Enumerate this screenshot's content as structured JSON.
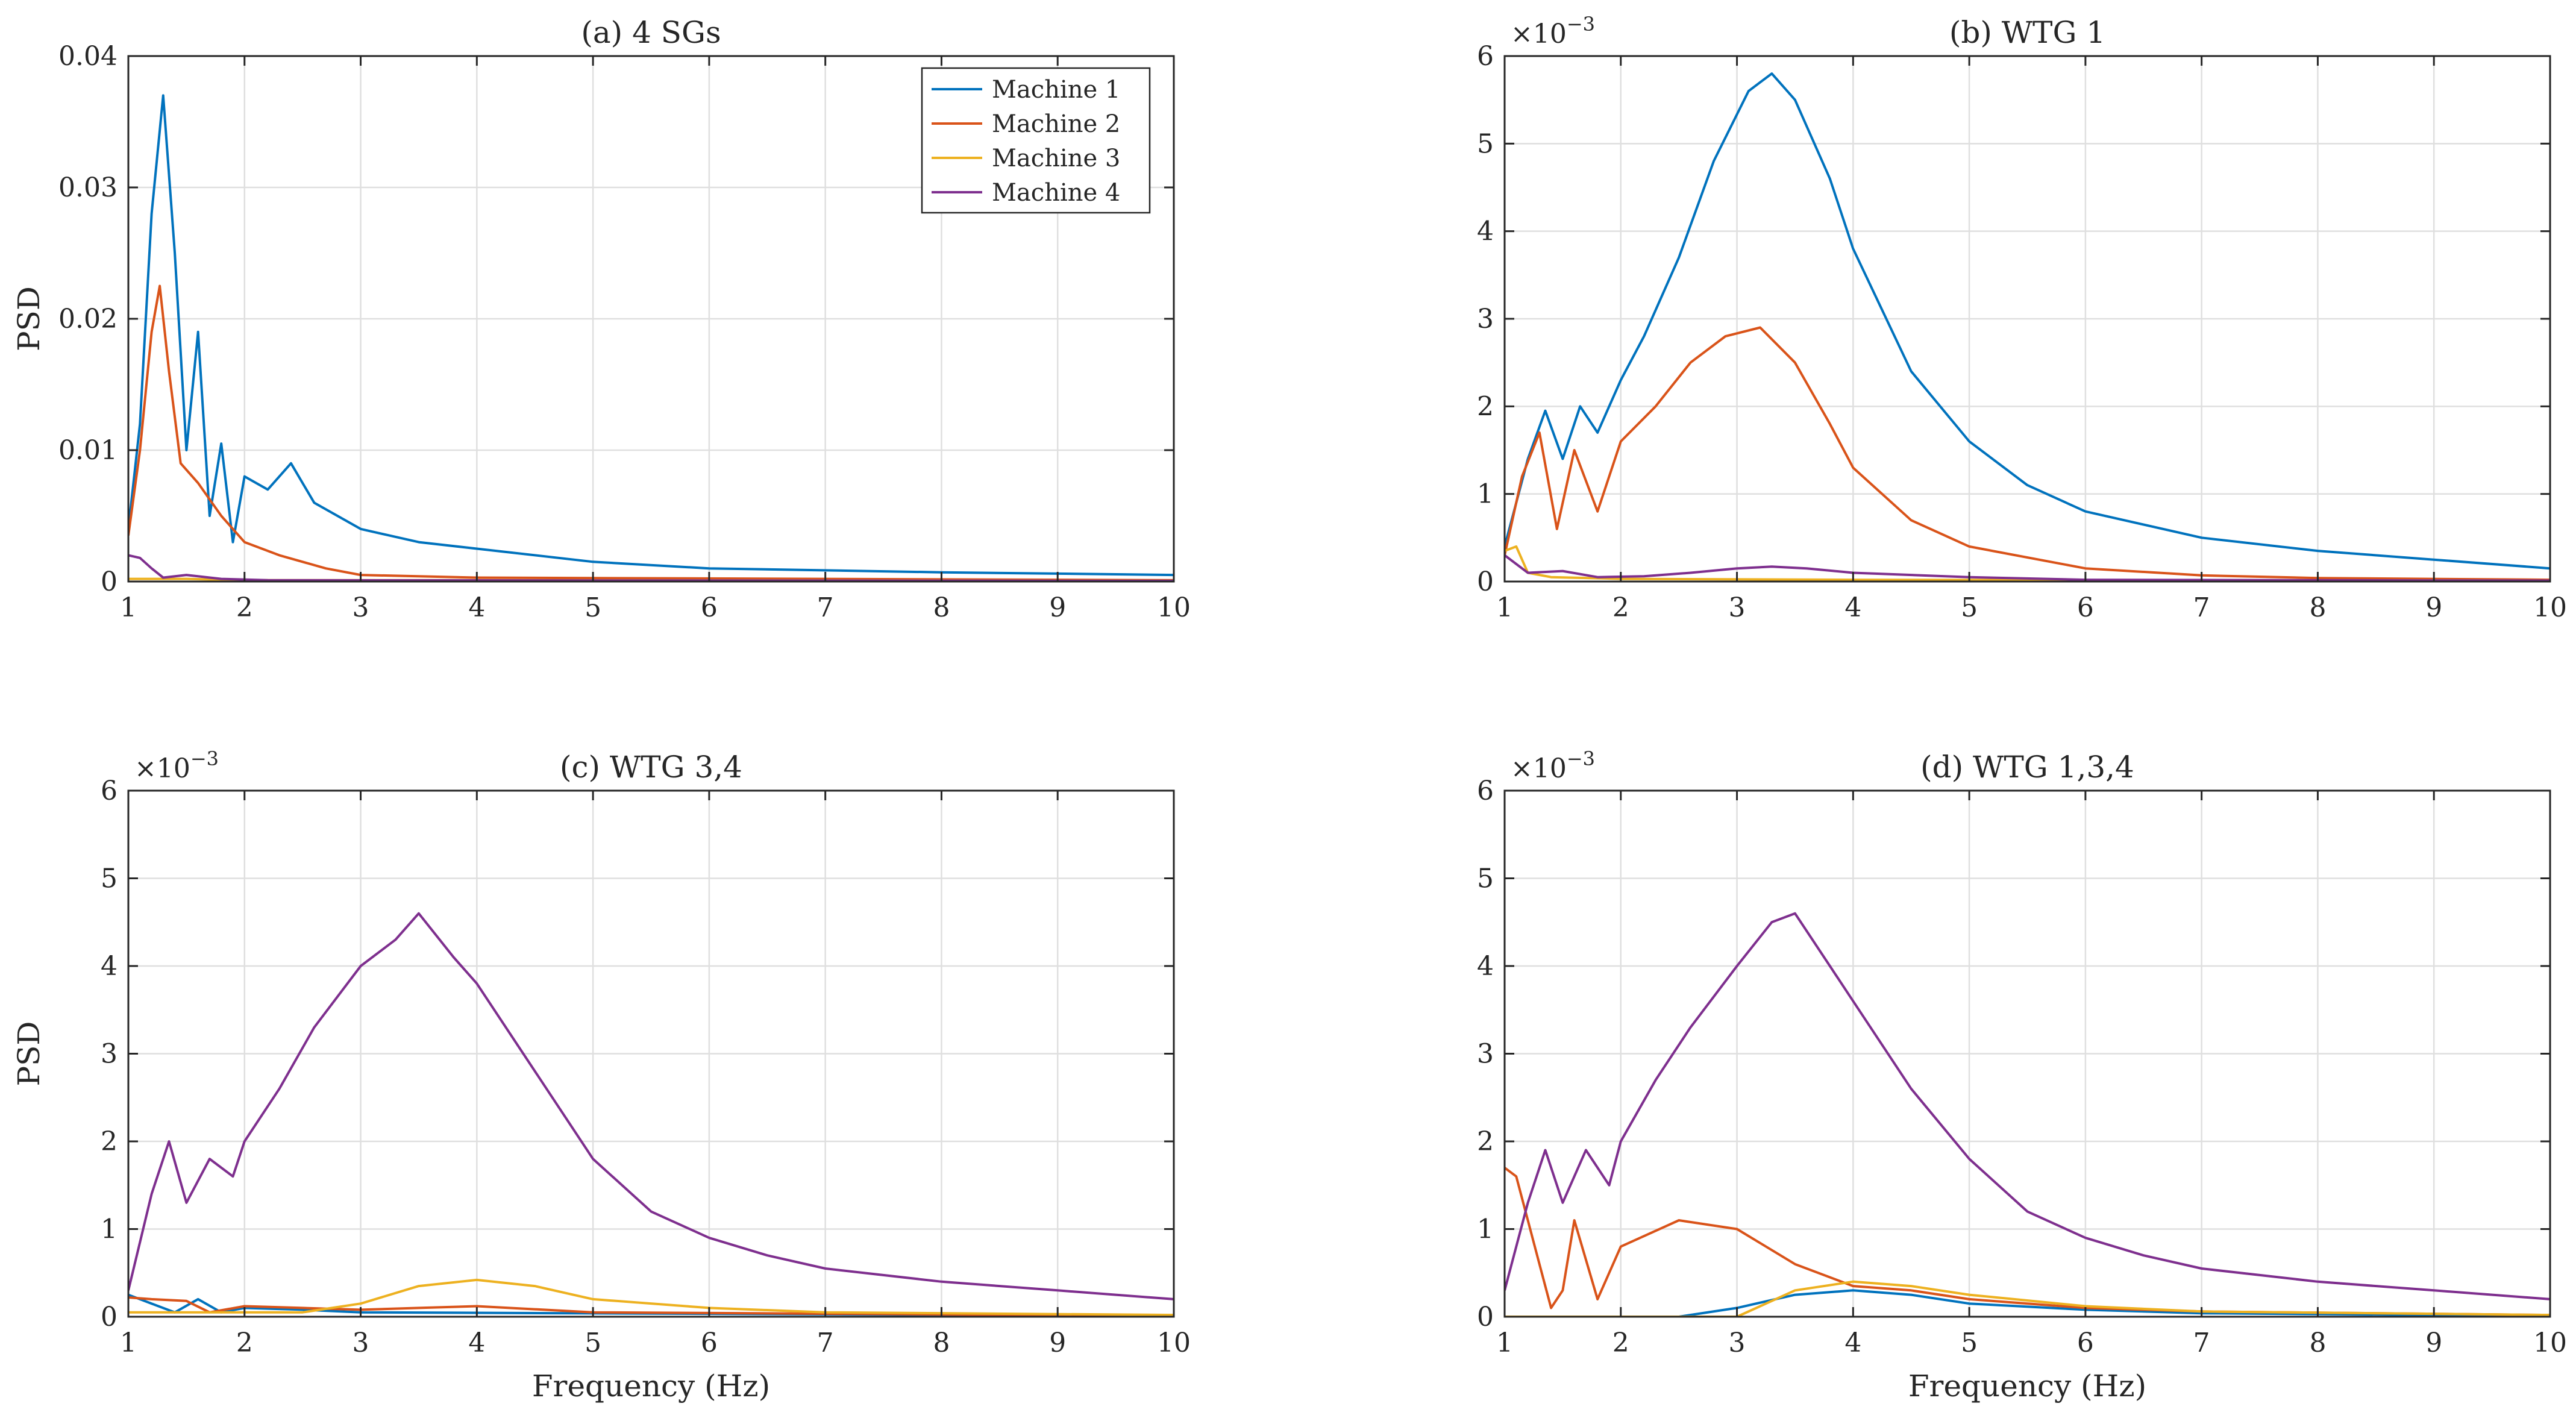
{
  "figure": {
    "series_colors": {
      "Machine 1": "#0072BD",
      "Machine 2": "#D95319",
      "Machine 3": "#EDB120",
      "Machine 4": "#7E2F8E"
    }
  },
  "chart_data": [
    {
      "id": "a",
      "type": "line",
      "title": "(a) 4 SGs",
      "xlabel": "",
      "ylabel": "PSD",
      "xlim": [
        1,
        10
      ],
      "ylim": [
        0,
        0.04
      ],
      "xticks": [
        "1",
        "2",
        "3",
        "4",
        "5",
        "6",
        "7",
        "8",
        "9",
        "10"
      ],
      "yticks": [
        "0",
        "0.01",
        "0.02",
        "0.03",
        "0.04"
      ],
      "exponent_label": "",
      "grid": true,
      "legend": {
        "position": "top-right",
        "entries": [
          "Machine 1",
          "Machine 2",
          "Machine 3",
          "Machine 4"
        ]
      },
      "series": [
        {
          "name": "Machine 1",
          "values": [
            [
              1.0,
              0.004
            ],
            [
              1.1,
              0.012
            ],
            [
              1.2,
              0.028
            ],
            [
              1.3,
              0.037
            ],
            [
              1.4,
              0.025
            ],
            [
              1.5,
              0.01
            ],
            [
              1.6,
              0.019
            ],
            [
              1.7,
              0.005
            ],
            [
              1.8,
              0.0105
            ],
            [
              1.9,
              0.003
            ],
            [
              2.0,
              0.008
            ],
            [
              2.2,
              0.007
            ],
            [
              2.4,
              0.009
            ],
            [
              2.6,
              0.006
            ],
            [
              2.8,
              0.005
            ],
            [
              3.0,
              0.004
            ],
            [
              3.5,
              0.003
            ],
            [
              4.0,
              0.0025
            ],
            [
              5.0,
              0.0015
            ],
            [
              6.0,
              0.001
            ],
            [
              8.0,
              0.0007
            ],
            [
              10.0,
              0.0005
            ]
          ]
        },
        {
          "name": "Machine 2",
          "values": [
            [
              1.0,
              0.0035
            ],
            [
              1.1,
              0.01
            ],
            [
              1.2,
              0.019
            ],
            [
              1.27,
              0.0225
            ],
            [
              1.35,
              0.016
            ],
            [
              1.45,
              0.009
            ],
            [
              1.6,
              0.0075
            ],
            [
              1.8,
              0.005
            ],
            [
              2.0,
              0.003
            ],
            [
              2.3,
              0.002
            ],
            [
              2.7,
              0.001
            ],
            [
              3.0,
              0.0005
            ],
            [
              4.0,
              0.0003
            ],
            [
              10.0,
              0.0001
            ]
          ]
        },
        {
          "name": "Machine 3",
          "values": [
            [
              1.0,
              0.0002
            ],
            [
              1.5,
              0.0002
            ],
            [
              2.0,
              0.0001
            ],
            [
              4.0,
              0.0001
            ],
            [
              10.0,
              5e-05
            ]
          ]
        },
        {
          "name": "Machine 4",
          "values": [
            [
              1.0,
              0.002
            ],
            [
              1.1,
              0.0018
            ],
            [
              1.2,
              0.001
            ],
            [
              1.3,
              0.0003
            ],
            [
              1.5,
              0.0005
            ],
            [
              1.8,
              0.0002
            ],
            [
              2.2,
              0.0001
            ],
            [
              10.0,
              5e-05
            ]
          ]
        }
      ]
    },
    {
      "id": "b",
      "type": "line",
      "title": "(b) WTG 1",
      "xlabel": "",
      "ylabel": "",
      "xlim": [
        1,
        10
      ],
      "ylim": [
        0,
        6
      ],
      "xticks": [
        "1",
        "2",
        "3",
        "4",
        "5",
        "6",
        "7",
        "8",
        "9",
        "10"
      ],
      "yticks": [
        "0",
        "1",
        "2",
        "3",
        "4",
        "5",
        "6"
      ],
      "exponent_label": "×10",
      "exponent_power": "−3",
      "grid": true,
      "series": [
        {
          "name": "Machine 1",
          "values": [
            [
              1.0,
              0.4
            ],
            [
              1.2,
              1.4
            ],
            [
              1.35,
              1.95
            ],
            [
              1.5,
              1.4
            ],
            [
              1.65,
              2.0
            ],
            [
              1.8,
              1.7
            ],
            [
              2.0,
              2.3
            ],
            [
              2.2,
              2.8
            ],
            [
              2.5,
              3.7
            ],
            [
              2.8,
              4.8
            ],
            [
              3.1,
              5.6
            ],
            [
              3.3,
              5.8
            ],
            [
              3.5,
              5.5
            ],
            [
              3.8,
              4.6
            ],
            [
              4.0,
              3.8
            ],
            [
              4.5,
              2.4
            ],
            [
              5.0,
              1.6
            ],
            [
              5.5,
              1.1
            ],
            [
              6.0,
              0.8
            ],
            [
              7.0,
              0.5
            ],
            [
              8.0,
              0.35
            ],
            [
              9.0,
              0.25
            ],
            [
              10.0,
              0.15
            ]
          ]
        },
        {
          "name": "Machine 2",
          "values": [
            [
              1.0,
              0.3
            ],
            [
              1.15,
              1.2
            ],
            [
              1.3,
              1.7
            ],
            [
              1.45,
              0.6
            ],
            [
              1.6,
              1.5
            ],
            [
              1.8,
              0.8
            ],
            [
              2.0,
              1.6
            ],
            [
              2.3,
              2.0
            ],
            [
              2.6,
              2.5
            ],
            [
              2.9,
              2.8
            ],
            [
              3.2,
              2.9
            ],
            [
              3.5,
              2.5
            ],
            [
              3.8,
              1.8
            ],
            [
              4.0,
              1.3
            ],
            [
              4.5,
              0.7
            ],
            [
              5.0,
              0.4
            ],
            [
              6.0,
              0.15
            ],
            [
              7.0,
              0.07
            ],
            [
              8.0,
              0.04
            ],
            [
              10.0,
              0.02
            ]
          ]
        },
        {
          "name": "Machine 3",
          "values": [
            [
              1.0,
              0.35
            ],
            [
              1.1,
              0.4
            ],
            [
              1.2,
              0.1
            ],
            [
              1.4,
              0.05
            ],
            [
              2.0,
              0.03
            ],
            [
              4.0,
              0.02
            ],
            [
              10.0,
              0.01
            ]
          ]
        },
        {
          "name": "Machine 4",
          "values": [
            [
              1.0,
              0.3
            ],
            [
              1.2,
              0.1
            ],
            [
              1.5,
              0.12
            ],
            [
              1.8,
              0.05
            ],
            [
              2.2,
              0.06
            ],
            [
              2.6,
              0.1
            ],
            [
              3.0,
              0.15
            ],
            [
              3.3,
              0.17
            ],
            [
              3.6,
              0.15
            ],
            [
              4.0,
              0.1
            ],
            [
              5.0,
              0.05
            ],
            [
              6.0,
              0.02
            ],
            [
              10.0,
              0.01
            ]
          ]
        }
      ]
    },
    {
      "id": "c",
      "type": "line",
      "title": "(c) WTG 3,4",
      "xlabel": "Frequency (Hz)",
      "ylabel": "PSD",
      "xlim": [
        1,
        10
      ],
      "ylim": [
        0,
        6
      ],
      "xticks": [
        "1",
        "2",
        "3",
        "4",
        "5",
        "6",
        "7",
        "8",
        "9",
        "10"
      ],
      "yticks": [
        "0",
        "1",
        "2",
        "3",
        "4",
        "5",
        "6"
      ],
      "exponent_label": "×10",
      "exponent_power": "−3",
      "grid": true,
      "series": [
        {
          "name": "Machine 1",
          "values": [
            [
              1.0,
              0.25
            ],
            [
              1.2,
              0.15
            ],
            [
              1.4,
              0.05
            ],
            [
              1.6,
              0.2
            ],
            [
              1.8,
              0.05
            ],
            [
              2.0,
              0.1
            ],
            [
              2.5,
              0.08
            ],
            [
              3.0,
              0.05
            ],
            [
              10.0,
              0.01
            ]
          ]
        },
        {
          "name": "Machine 2",
          "values": [
            [
              1.0,
              0.22
            ],
            [
              1.2,
              0.2
            ],
            [
              1.5,
              0.18
            ],
            [
              1.7,
              0.05
            ],
            [
              2.0,
              0.12
            ],
            [
              2.5,
              0.1
            ],
            [
              3.0,
              0.08
            ],
            [
              3.5,
              0.1
            ],
            [
              4.0,
              0.12
            ],
            [
              5.0,
              0.05
            ],
            [
              10.0,
              0.01
            ]
          ]
        },
        {
          "name": "Machine 3",
          "values": [
            [
              1.0,
              0.05
            ],
            [
              2.5,
              0.05
            ],
            [
              3.0,
              0.15
            ],
            [
              3.5,
              0.35
            ],
            [
              4.0,
              0.42
            ],
            [
              4.5,
              0.35
            ],
            [
              5.0,
              0.2
            ],
            [
              6.0,
              0.1
            ],
            [
              7.0,
              0.05
            ],
            [
              10.0,
              0.02
            ]
          ]
        },
        {
          "name": "Machine 4",
          "values": [
            [
              1.0,
              0.3
            ],
            [
              1.2,
              1.4
            ],
            [
              1.35,
              2.0
            ],
            [
              1.5,
              1.3
            ],
            [
              1.7,
              1.8
            ],
            [
              1.9,
              1.6
            ],
            [
              2.0,
              2.0
            ],
            [
              2.3,
              2.6
            ],
            [
              2.6,
              3.3
            ],
            [
              3.0,
              4.0
            ],
            [
              3.3,
              4.3
            ],
            [
              3.5,
              4.6
            ],
            [
              3.8,
              4.1
            ],
            [
              4.0,
              3.8
            ],
            [
              4.5,
              2.8
            ],
            [
              5.0,
              1.8
            ],
            [
              5.5,
              1.2
            ],
            [
              6.0,
              0.9
            ],
            [
              6.5,
              0.7
            ],
            [
              7.0,
              0.55
            ],
            [
              8.0,
              0.4
            ],
            [
              9.0,
              0.3
            ],
            [
              10.0,
              0.2
            ]
          ]
        }
      ]
    },
    {
      "id": "d",
      "type": "line",
      "title": "(d) WTG 1,3,4",
      "xlabel": "Frequency (Hz)",
      "ylabel": "",
      "xlim": [
        1,
        10
      ],
      "ylim": [
        0,
        6
      ],
      "xticks": [
        "1",
        "2",
        "3",
        "4",
        "5",
        "6",
        "7",
        "8",
        "9",
        "10"
      ],
      "yticks": [
        "0",
        "1",
        "2",
        "3",
        "4",
        "5",
        "6"
      ],
      "exponent_label": "×10",
      "exponent_power": "−3",
      "grid": true,
      "series": [
        {
          "name": "Machine 1",
          "values": [
            [
              1.0,
              0.0
            ],
            [
              2.5,
              0.0
            ],
            [
              3.0,
              0.1
            ],
            [
              3.5,
              0.25
            ],
            [
              4.0,
              0.3
            ],
            [
              4.5,
              0.25
            ],
            [
              5.0,
              0.15
            ],
            [
              6.0,
              0.08
            ],
            [
              7.0,
              0.04
            ],
            [
              10.0,
              0.01
            ]
          ]
        },
        {
          "name": "Machine 2",
          "values": [
            [
              1.0,
              1.7
            ],
            [
              1.1,
              1.6
            ],
            [
              1.3,
              0.6
            ],
            [
              1.4,
              0.1
            ],
            [
              1.5,
              0.3
            ],
            [
              1.6,
              1.1
            ],
            [
              1.8,
              0.2
            ],
            [
              2.0,
              0.8
            ],
            [
              2.5,
              1.1
            ],
            [
              3.0,
              1.0
            ],
            [
              3.5,
              0.6
            ],
            [
              4.0,
              0.35
            ],
            [
              4.5,
              0.3
            ],
            [
              5.0,
              0.2
            ],
            [
              6.0,
              0.1
            ],
            [
              7.0,
              0.06
            ],
            [
              10.0,
              0.02
            ]
          ]
        },
        {
          "name": "Machine 3",
          "values": [
            [
              1.0,
              0.0
            ],
            [
              3.0,
              0.0
            ],
            [
              3.5,
              0.3
            ],
            [
              4.0,
              0.4
            ],
            [
              4.5,
              0.35
            ],
            [
              5.0,
              0.25
            ],
            [
              6.0,
              0.12
            ],
            [
              7.0,
              0.06
            ],
            [
              10.0,
              0.02
            ]
          ]
        },
        {
          "name": "Machine 4",
          "values": [
            [
              1.0,
              0.3
            ],
            [
              1.2,
              1.3
            ],
            [
              1.35,
              1.9
            ],
            [
              1.5,
              1.3
            ],
            [
              1.7,
              1.9
            ],
            [
              1.9,
              1.5
            ],
            [
              2.0,
              2.0
            ],
            [
              2.3,
              2.7
            ],
            [
              2.6,
              3.3
            ],
            [
              3.0,
              4.0
            ],
            [
              3.3,
              4.5
            ],
            [
              3.5,
              4.6
            ],
            [
              3.8,
              4.0
            ],
            [
              4.0,
              3.6
            ],
            [
              4.5,
              2.6
            ],
            [
              5.0,
              1.8
            ],
            [
              5.5,
              1.2
            ],
            [
              6.0,
              0.9
            ],
            [
              6.5,
              0.7
            ],
            [
              7.0,
              0.55
            ],
            [
              8.0,
              0.4
            ],
            [
              9.0,
              0.3
            ],
            [
              10.0,
              0.2
            ]
          ]
        }
      ]
    }
  ]
}
